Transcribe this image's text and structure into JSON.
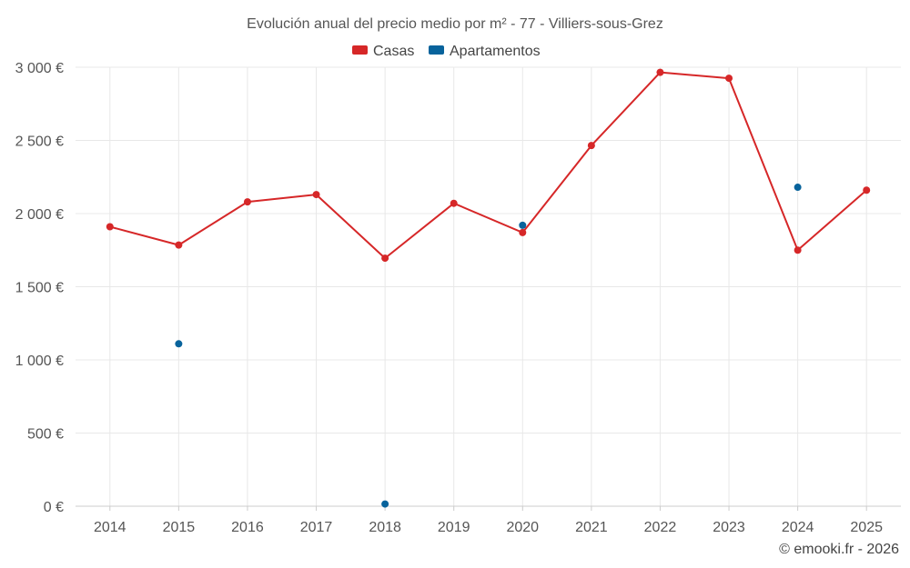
{
  "chart_data": {
    "type": "line",
    "title": "Evolución anual del precio medio por m² - 77 - Villiers-sous-Grez",
    "categories": [
      "2014",
      "2015",
      "2016",
      "2017",
      "2018",
      "2019",
      "2020",
      "2021",
      "2022",
      "2023",
      "2024",
      "2025"
    ],
    "ylim": [
      0,
      3000
    ],
    "yticks": [
      0,
      500,
      1000,
      1500,
      2000,
      2500,
      3000
    ],
    "ytick_labels": [
      "0 €",
      "500 €",
      "1 000 €",
      "1 500 €",
      "2 000 €",
      "2 500 €",
      "3 000 €"
    ],
    "grid": true,
    "legend_position": "top-center",
    "series": [
      {
        "name": "Casas",
        "color": "#d62728",
        "style": "line",
        "values": [
          1910,
          1785,
          2080,
          2130,
          1695,
          2070,
          1870,
          2465,
          2965,
          2925,
          1750,
          2160
        ]
      },
      {
        "name": "Apartamentos",
        "color": "#08639c",
        "style": "points",
        "values": [
          null,
          1110,
          null,
          null,
          15,
          null,
          1920,
          null,
          null,
          null,
          2180,
          null
        ]
      }
    ],
    "credit": "© emooki.fr - 2026"
  }
}
